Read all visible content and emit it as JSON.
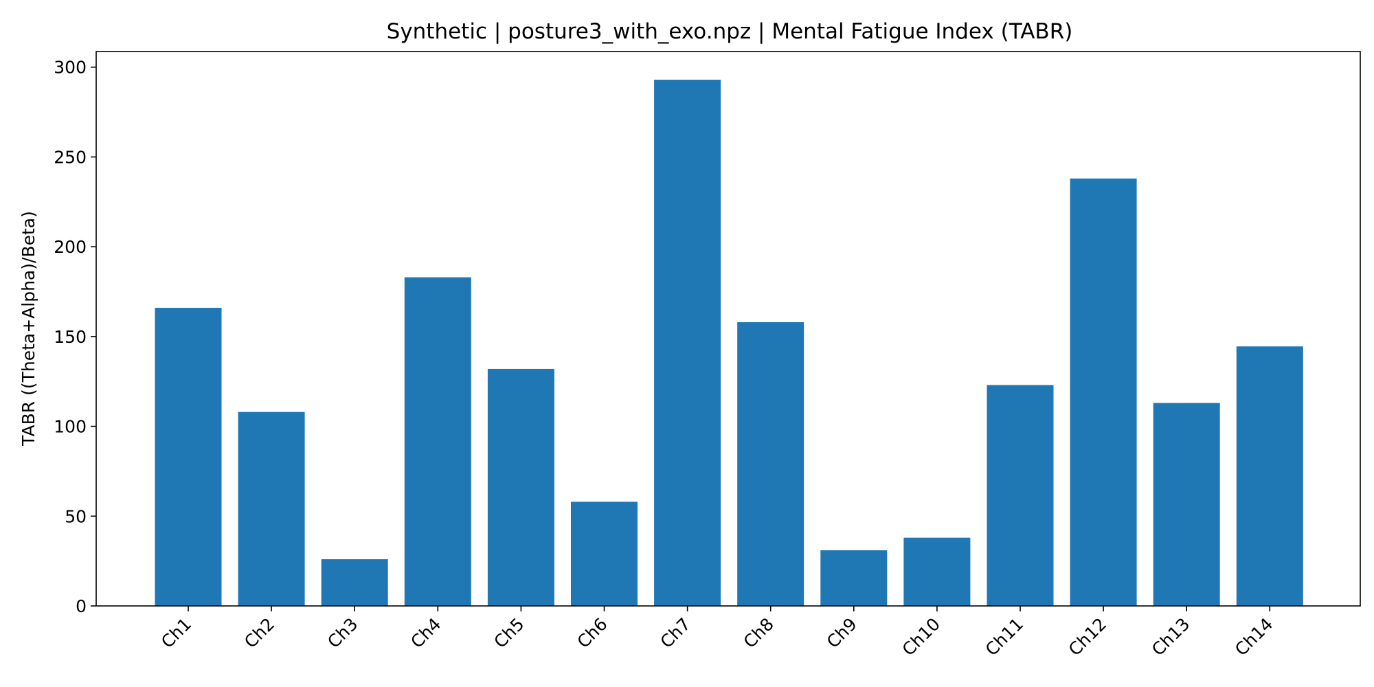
{
  "chart_data": {
    "type": "bar",
    "title": "Synthetic | posture3_with_exo.npz | Mental Fatigue Index (TABR)",
    "xlabel": "",
    "ylabel": "TABR ((Theta+Alpha)/Beta)",
    "categories": [
      "Ch1",
      "Ch2",
      "Ch3",
      "Ch4",
      "Ch5",
      "Ch6",
      "Ch7",
      "Ch8",
      "Ch9",
      "Ch10",
      "Ch11",
      "Ch12",
      "Ch13",
      "Ch14"
    ],
    "values": [
      166,
      108,
      26,
      183,
      132,
      58,
      293,
      158,
      31,
      38,
      123,
      238,
      113,
      144.5
    ],
    "ylim": [
      0,
      308.7
    ],
    "yticks": [
      0,
      50,
      100,
      150,
      200,
      250,
      300
    ],
    "grid": false,
    "bar_color": "#1f77b4"
  }
}
